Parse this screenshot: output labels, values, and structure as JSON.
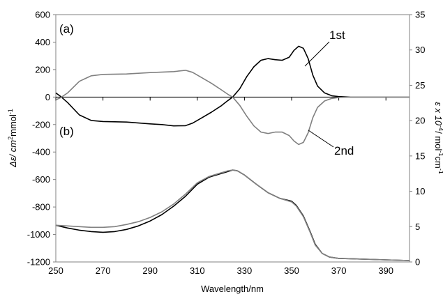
{
  "chart_data": {
    "type": "line",
    "xlabel": "Wavelength/nm",
    "ylabel_left": {
      "main": "Δε/ cm",
      "sup1": "2",
      "mid": "mmol",
      "sup2": "-1"
    },
    "ylabel_right": {
      "main": "ε x 10",
      "sup1": "-4",
      "mid": "/ mol",
      "sup2": "-1",
      "tail": "cm",
      "sup3": "-1"
    },
    "xlim": [
      250,
      400
    ],
    "ylim_left": [
      -1200,
      600
    ],
    "ylim_right": [
      0,
      35
    ],
    "x_ticks": [
      "250",
      "270",
      "290",
      "310",
      "330",
      "350",
      "370",
      "390"
    ],
    "y_left_ticks": [
      "-1200",
      "-1000",
      "-800",
      "-600",
      "-400",
      "-200",
      "0",
      "200",
      "400",
      "600"
    ],
    "y_right_ticks": [
      "0",
      "5",
      "10",
      "15",
      "20",
      "25",
      "30",
      "35"
    ],
    "panel_labels": [
      "(a)",
      "(b)"
    ],
    "annotations": [
      "1st",
      "2nd"
    ],
    "colors": {
      "first": "#000000",
      "second": "#808080",
      "zero_line": "#000000"
    },
    "series": [
      {
        "name": "1st",
        "axis": "left",
        "points": [
          [
            250,
            30
          ],
          [
            252,
            5
          ],
          [
            255,
            -40
          ],
          [
            260,
            -130
          ],
          [
            265,
            -170
          ],
          [
            270,
            -178
          ],
          [
            280,
            -182
          ],
          [
            290,
            -195
          ],
          [
            295,
            -200
          ],
          [
            300,
            -210
          ],
          [
            305,
            -208
          ],
          [
            308,
            -190
          ],
          [
            312,
            -150
          ],
          [
            316,
            -110
          ],
          [
            320,
            -65
          ],
          [
            323,
            -25
          ],
          [
            325,
            0
          ],
          [
            328,
            60
          ],
          [
            331,
            150
          ],
          [
            334,
            220
          ],
          [
            337,
            268
          ],
          [
            340,
            280
          ],
          [
            343,
            272
          ],
          [
            346,
            268
          ],
          [
            349,
            290
          ],
          [
            351,
            340
          ],
          [
            353,
            370
          ],
          [
            355,
            355
          ],
          [
            357,
            280
          ],
          [
            359,
            160
          ],
          [
            361,
            80
          ],
          [
            364,
            30
          ],
          [
            367,
            10
          ],
          [
            370,
            3
          ],
          [
            375,
            0
          ],
          [
            400,
            0
          ]
        ]
      },
      {
        "name": "2nd",
        "axis": "left",
        "points": [
          [
            250,
            -20
          ],
          [
            252,
            -5
          ],
          [
            255,
            30
          ],
          [
            260,
            115
          ],
          [
            265,
            155
          ],
          [
            270,
            165
          ],
          [
            280,
            168
          ],
          [
            290,
            178
          ],
          [
            300,
            185
          ],
          [
            305,
            195
          ],
          [
            308,
            180
          ],
          [
            312,
            140
          ],
          [
            316,
            100
          ],
          [
            320,
            55
          ],
          [
            323,
            20
          ],
          [
            325,
            0
          ],
          [
            328,
            -60
          ],
          [
            331,
            -140
          ],
          [
            334,
            -210
          ],
          [
            337,
            -255
          ],
          [
            340,
            -265
          ],
          [
            343,
            -255
          ],
          [
            346,
            -255
          ],
          [
            349,
            -280
          ],
          [
            351,
            -320
          ],
          [
            353,
            -345
          ],
          [
            355,
            -330
          ],
          [
            357,
            -260
          ],
          [
            359,
            -150
          ],
          [
            361,
            -75
          ],
          [
            364,
            -28
          ],
          [
            367,
            -10
          ],
          [
            370,
            -3
          ],
          [
            375,
            0
          ],
          [
            400,
            0
          ]
        ]
      },
      {
        "name": "1st",
        "axis": "right",
        "points": [
          [
            250,
            5.2
          ],
          [
            255,
            4.8
          ],
          [
            260,
            4.5
          ],
          [
            265,
            4.3
          ],
          [
            270,
            4.2
          ],
          [
            275,
            4.3
          ],
          [
            280,
            4.6
          ],
          [
            285,
            5.1
          ],
          [
            290,
            5.8
          ],
          [
            295,
            6.7
          ],
          [
            300,
            7.9
          ],
          [
            305,
            9.3
          ],
          [
            310,
            11.0
          ],
          [
            315,
            12.0
          ],
          [
            320,
            12.5
          ],
          [
            323,
            12.8
          ],
          [
            325,
            13.0
          ],
          [
            327,
            12.9
          ],
          [
            330,
            12.3
          ],
          [
            335,
            11.0
          ],
          [
            340,
            9.8
          ],
          [
            345,
            9.0
          ],
          [
            350,
            8.6
          ],
          [
            352,
            8.0
          ],
          [
            355,
            6.5
          ],
          [
            358,
            4.2
          ],
          [
            360,
            2.5
          ],
          [
            363,
            1.2
          ],
          [
            366,
            0.7
          ],
          [
            370,
            0.5
          ],
          [
            380,
            0.4
          ],
          [
            390,
            0.3
          ],
          [
            400,
            0.2
          ]
        ]
      },
      {
        "name": "2nd",
        "axis": "right",
        "points": [
          [
            250,
            5.2
          ],
          [
            255,
            5.1
          ],
          [
            260,
            5.0
          ],
          [
            265,
            4.9
          ],
          [
            270,
            4.9
          ],
          [
            275,
            5.0
          ],
          [
            280,
            5.3
          ],
          [
            285,
            5.7
          ],
          [
            290,
            6.3
          ],
          [
            295,
            7.1
          ],
          [
            300,
            8.2
          ],
          [
            305,
            9.6
          ],
          [
            310,
            11.2
          ],
          [
            315,
            12.1
          ],
          [
            320,
            12.6
          ],
          [
            323,
            12.9
          ],
          [
            325,
            13.0
          ],
          [
            327,
            12.9
          ],
          [
            330,
            12.3
          ],
          [
            335,
            11.0
          ],
          [
            340,
            9.8
          ],
          [
            345,
            9.0
          ],
          [
            350,
            8.5
          ],
          [
            352,
            7.9
          ],
          [
            355,
            6.4
          ],
          [
            358,
            4.1
          ],
          [
            360,
            2.4
          ],
          [
            363,
            1.2
          ],
          [
            366,
            0.7
          ],
          [
            370,
            0.5
          ],
          [
            380,
            0.4
          ],
          [
            390,
            0.3
          ],
          [
            400,
            0.2
          ]
        ]
      }
    ]
  }
}
